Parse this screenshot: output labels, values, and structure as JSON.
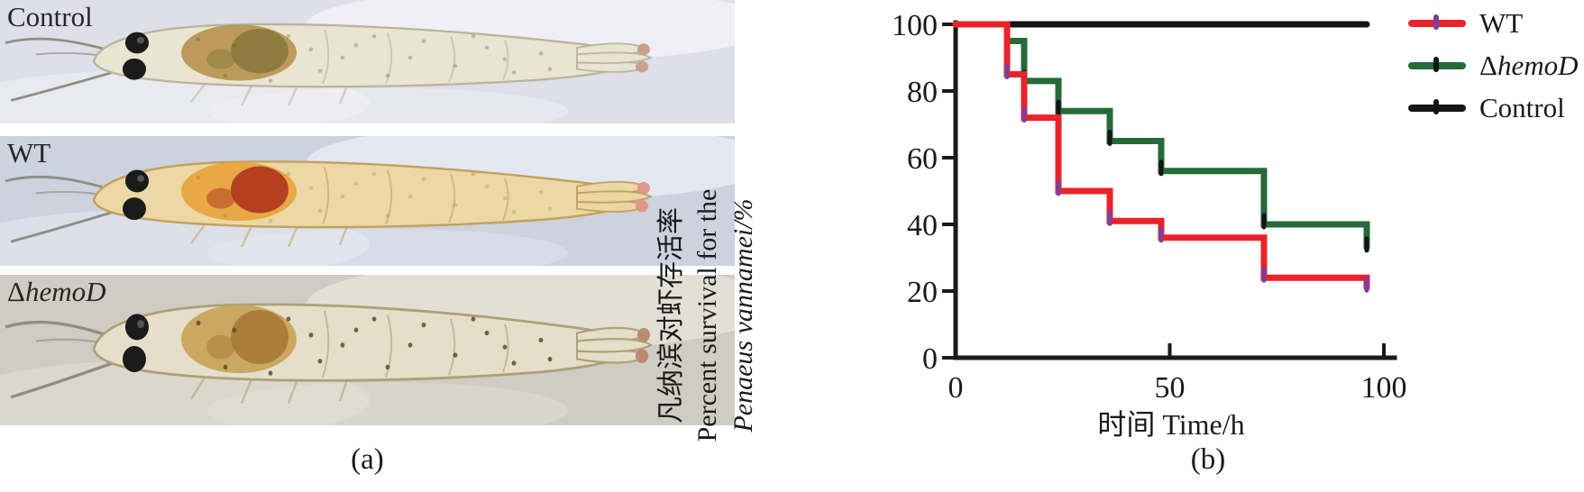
{
  "figure": {
    "background": "#ffffff"
  },
  "panel_a": {
    "caption": "(a)",
    "photos": [
      {
        "label": "Control",
        "colors": {
          "bg": "#dfdfe9",
          "bg2": "#f3f3f8",
          "body": "#e9e5d2",
          "body-edge": "#b9b49a",
          "patch": "#b6914f",
          "patch2": "#8c7a3e",
          "tail": "#c9a08c",
          "speck-op": "0.30"
        }
      },
      {
        "label": "WT",
        "colors": {
          "bg": "#ccd3df",
          "bg2": "#e9edf4",
          "body": "#ecd8a4",
          "body-edge": "#c4a05e",
          "patch": "#e8a33c",
          "patch2": "#b23a20",
          "tail": "#dd988a",
          "speck-op": "0.18"
        }
      },
      {
        "label_delta": "Δ",
        "label_main": "hemoD",
        "colors": {
          "bg": "#cfccc3",
          "bg2": "#e6e3da",
          "body": "#e5dfca",
          "body-edge": "#aba176",
          "patch": "#c7a258",
          "patch2": "#a87a38",
          "tail": "#bd8a72",
          "speck-op": "0.85"
        }
      }
    ]
  },
  "panel_b": {
    "caption": "(b)"
  },
  "chart_data": {
    "type": "line",
    "subtype": "kaplan-meier-step-survival",
    "title": "",
    "xlabel": "时间 Time/h",
    "ylabel_lines": [
      "凡纳滨对虾存活率",
      "Percent survival for the",
      "Penaeus vannamei/%"
    ],
    "xlim": [
      0,
      100
    ],
    "ylim": [
      0,
      100
    ],
    "xticks": [
      0,
      50,
      100
    ],
    "yticks": [
      0,
      20,
      40,
      60,
      80,
      100
    ],
    "grid": false,
    "legend_position": "top-right-outside",
    "axis_color": "#1a1a1a",
    "series": [
      {
        "name": "Control",
        "color": "#151515",
        "censor_color": "#151515",
        "x": [
          0,
          96
        ],
        "y": [
          100,
          100
        ]
      },
      {
        "name": "ΔhemoD",
        "color": "#266a39",
        "censor_color": "#141414",
        "x": [
          0,
          12,
          16,
          24,
          36,
          48,
          72,
          96
        ],
        "y": [
          100,
          95,
          83,
          74,
          65,
          56,
          40,
          33
        ]
      },
      {
        "name": "WT",
        "color": "#e8232b",
        "censor_color": "#7c3f9c",
        "x": [
          0,
          12,
          16,
          24,
          36,
          48,
          72,
          96
        ],
        "y": [
          100,
          85,
          72,
          50,
          41,
          36,
          24,
          21
        ]
      }
    ],
    "legend": [
      {
        "label": "WT",
        "color": "#e8232b",
        "censor_color": "#7c3f9c"
      },
      {
        "label_delta": "Δ",
        "label_main": "hemoD",
        "color": "#266a39",
        "censor_color": "#141414"
      },
      {
        "label": "Control",
        "color": "#141414",
        "censor_color": "#141414"
      }
    ]
  }
}
